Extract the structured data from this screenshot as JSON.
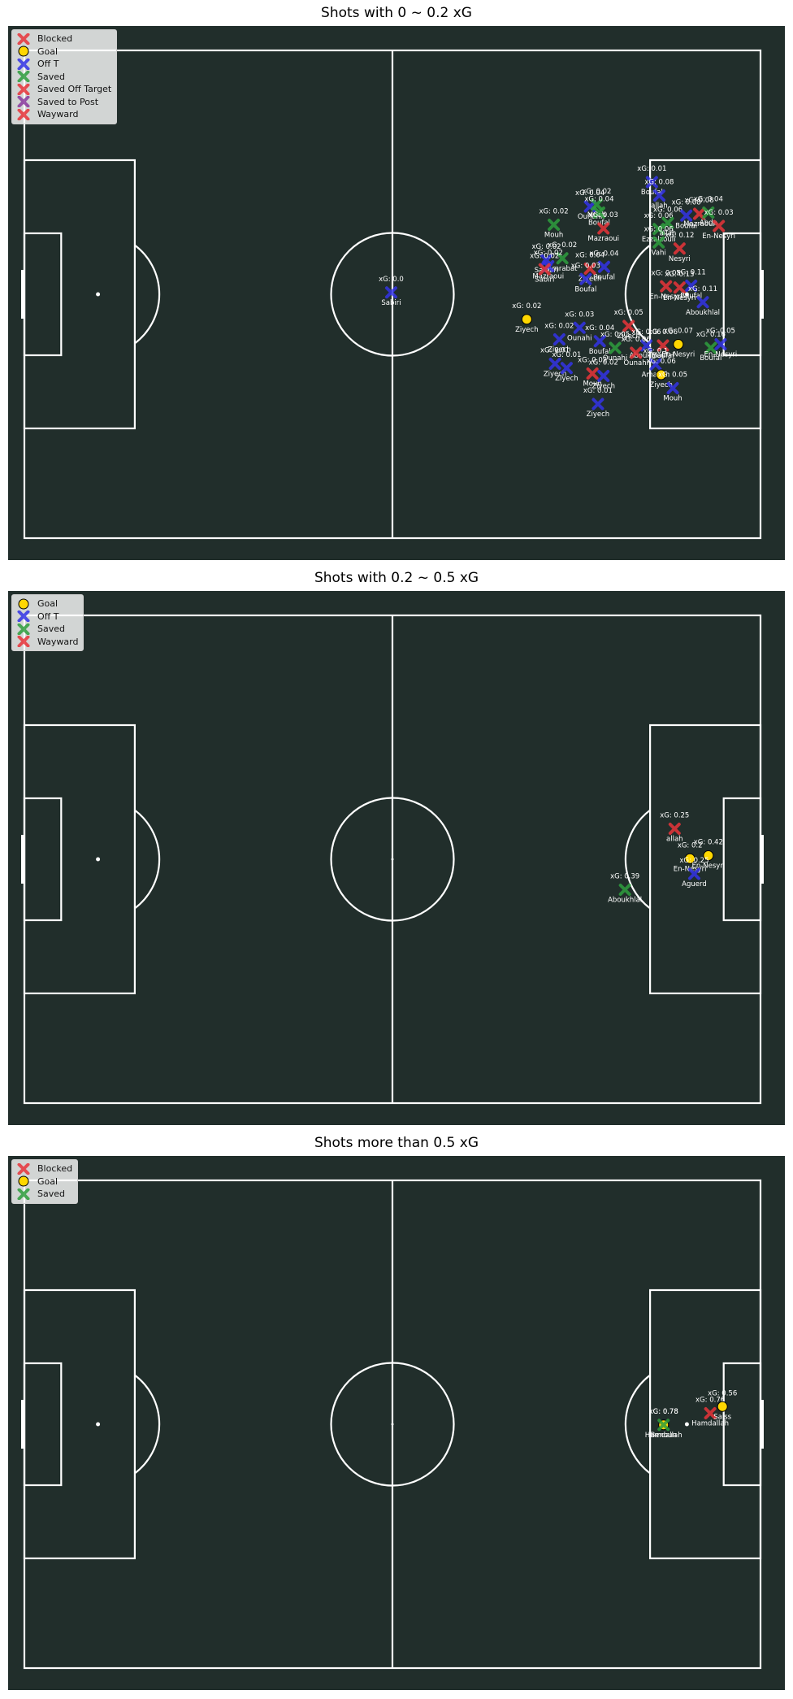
{
  "chart_data": [
    {
      "type": "scatter",
      "title": "Shots with 0 ~ 0.2 xG",
      "legend_position": "top-left",
      "legend": [
        "Blocked",
        "Goal",
        "Off T",
        "Saved",
        "Saved Off Target",
        "Saved to Post",
        "Wayward"
      ],
      "pitch": {
        "length": 120,
        "width": 80
      },
      "points": [
        {
          "x": 59.8,
          "y": 39.7,
          "xg": "0.0",
          "player": "Sabiri",
          "outcome": "Off T"
        },
        {
          "x": 102.3,
          "y": 21.6,
          "xg": "0.01",
          "player": "Boufal",
          "outcome": "Off T"
        },
        {
          "x": 103.5,
          "y": 23.8,
          "xg": "0.08",
          "player": "allah",
          "outcome": "Off T"
        },
        {
          "x": 92.2,
          "y": 25.6,
          "xg": "0.04",
          "player": "Ounahi",
          "outcome": "Off T"
        },
        {
          "x": 93.3,
          "y": 25.3,
          "xg": "0.02",
          "player": "Mouh",
          "outcome": "Saved"
        },
        {
          "x": 93.7,
          "y": 26.6,
          "xg": "0.04",
          "player": "Boufal",
          "outcome": "Saved"
        },
        {
          "x": 86.3,
          "y": 28.6,
          "xg": "0.02",
          "player": "Mouh",
          "outcome": "Saved"
        },
        {
          "x": 94.4,
          "y": 29.2,
          "xg": "0.03",
          "player": "Mazraoui",
          "outcome": "Wayward"
        },
        {
          "x": 103.4,
          "y": 29.3,
          "xg": "0.06",
          "player": "Ezzalzouli",
          "outcome": "Saved"
        },
        {
          "x": 104.9,
          "y": 28.3,
          "xg": "0.06",
          "player": "allah",
          "outcome": "Saved"
        },
        {
          "x": 107.9,
          "y": 27.1,
          "xg": "0.08",
          "player": "Boufal",
          "outcome": "Off T"
        },
        {
          "x": 110.0,
          "y": 26.8,
          "xg": "0.08",
          "player": "Mazraoui",
          "outcome": "Blocked"
        },
        {
          "x": 111.5,
          "y": 26.6,
          "xg": "0.04",
          "player": "Abde",
          "outcome": "Saved"
        },
        {
          "x": 113.2,
          "y": 28.8,
          "xg": "0.03",
          "player": "En-Nesyri",
          "outcome": "Wayward"
        },
        {
          "x": 103.4,
          "y": 31.5,
          "xg": "0.06",
          "player": "Vahi",
          "outcome": "Saved"
        },
        {
          "x": 106.8,
          "y": 32.5,
          "xg": "0.12",
          "player": "Nesyri",
          "outcome": "Wayward"
        },
        {
          "x": 85.1,
          "y": 34.4,
          "xg": "0.02",
          "player": "Saibari",
          "outcome": "Off T"
        },
        {
          "x": 87.7,
          "y": 34.1,
          "xg": "0.02",
          "player": "Amrabat",
          "outcome": "Saved"
        },
        {
          "x": 85.4,
          "y": 35.4,
          "xg": "0.02",
          "player": "Mazraoui",
          "outcome": "Off T"
        },
        {
          "x": 84.8,
          "y": 35.9,
          "xg": "0.02",
          "player": "Sabiri",
          "outcome": "Blocked"
        },
        {
          "x": 94.5,
          "y": 35.5,
          "xg": "0.04",
          "player": "Boufal",
          "outcome": "Off T"
        },
        {
          "x": 92.2,
          "y": 35.8,
          "xg": "0.04",
          "player": "Ziyech",
          "outcome": "Wayward"
        },
        {
          "x": 91.5,
          "y": 37.5,
          "xg": "0.03",
          "player": "Boufal",
          "outcome": "Off T"
        },
        {
          "x": 104.6,
          "y": 38.7,
          "xg": "0.05",
          "player": "En-Nesyri",
          "outcome": "Blocked"
        },
        {
          "x": 106.8,
          "y": 38.9,
          "xg": "0.13",
          "player": "En-Nesyri",
          "outcome": "Wayward"
        },
        {
          "x": 108.7,
          "y": 38.6,
          "xg": "0.11",
          "player": "Boufal",
          "outcome": "Off T"
        },
        {
          "x": 110.6,
          "y": 41.3,
          "xg": "0.11",
          "player": "Aboukhlal",
          "outcome": "Off T"
        },
        {
          "x": 81.9,
          "y": 44.1,
          "xg": "0.02",
          "player": "Ziyech",
          "outcome": "Goal"
        },
        {
          "x": 98.5,
          "y": 45.2,
          "xg": "0.05",
          "player": "Ziyech",
          "outcome": "Wayward"
        },
        {
          "x": 90.5,
          "y": 45.5,
          "xg": "0.03",
          "player": "Ounahi",
          "outcome": "Off T"
        },
        {
          "x": 87.2,
          "y": 47.4,
          "xg": "0.02",
          "player": "Ziyech",
          "outcome": "Off T"
        },
        {
          "x": 93.8,
          "y": 47.7,
          "xg": "0.04",
          "player": "Boufal",
          "outcome": "Off T"
        },
        {
          "x": 96.3,
          "y": 48.8,
          "xg": "0.05",
          "player": "Ounahi",
          "outcome": "Saved"
        },
        {
          "x": 101.4,
          "y": 48.4,
          "xg": "0.06",
          "player": "Aboukhlal",
          "outcome": "Off T"
        },
        {
          "x": 104.1,
          "y": 48.4,
          "xg": "0.06",
          "player": "Boufal",
          "outcome": "Wayward"
        },
        {
          "x": 106.6,
          "y": 48.2,
          "xg": "0.07",
          "player": "En-Nesyri",
          "outcome": "Goal"
        },
        {
          "x": 111.9,
          "y": 48.8,
          "xg": "0.16",
          "player": "Boufal",
          "outcome": "Saved"
        },
        {
          "x": 113.5,
          "y": 48.2,
          "xg": "0.05",
          "player": "En-Nesyri",
          "outcome": "Off T"
        },
        {
          "x": 99.7,
          "y": 49.6,
          "xg": "0.06",
          "player": "Ounahi",
          "outcome": "Wayward"
        },
        {
          "x": 102.9,
          "y": 51.5,
          "xg": "0.1",
          "player": "Amallah",
          "outcome": "Off T"
        },
        {
          "x": 86.5,
          "y": 51.4,
          "xg": "0.01",
          "player": "Ziyech",
          "outcome": "Off T"
        },
        {
          "x": 88.4,
          "y": 52.1,
          "xg": "0.01",
          "player": "Ziyech",
          "outcome": "Off T"
        },
        {
          "x": 92.6,
          "y": 53.0,
          "xg": "0.02",
          "player": "Mouh",
          "outcome": "Wayward"
        },
        {
          "x": 94.4,
          "y": 53.4,
          "xg": "0.02",
          "player": "Ziyech",
          "outcome": "Off T"
        },
        {
          "x": 103.8,
          "y": 53.2,
          "xg": "0.06",
          "player": "Ziyech",
          "outcome": "Goal"
        },
        {
          "x": 105.7,
          "y": 55.4,
          "xg": "0.05",
          "player": "Mouh",
          "outcome": "Off T"
        },
        {
          "x": 93.5,
          "y": 58.0,
          "xg": "0.01",
          "player": "Ziyech",
          "outcome": "Off T"
        }
      ]
    },
    {
      "type": "scatter",
      "title": "Shots with 0.2 ~ 0.5 xG",
      "legend_position": "top-left",
      "legend": [
        "Goal",
        "Off T",
        "Saved",
        "Wayward"
      ],
      "pitch": {
        "length": 120,
        "width": 80
      },
      "points": [
        {
          "x": 106.0,
          "y": 35.0,
          "xg": "0.25",
          "player": "allah",
          "outcome": "Wayward"
        },
        {
          "x": 108.5,
          "y": 39.9,
          "xg": "0.2",
          "player": "En-Nesyri",
          "outcome": "Goal"
        },
        {
          "x": 111.5,
          "y": 39.4,
          "xg": "0.42",
          "player": "En-Nesyri",
          "outcome": "Goal"
        },
        {
          "x": 109.2,
          "y": 42.4,
          "xg": "0.25",
          "player": "Aguerd",
          "outcome": "Off T"
        },
        {
          "x": 97.9,
          "y": 45.0,
          "xg": "0.39",
          "player": "Aboukhlal",
          "outcome": "Saved"
        }
      ]
    },
    {
      "type": "scatter",
      "title": "Shots more than 0.5 xG",
      "legend_position": "top-left",
      "legend": [
        "Blocked",
        "Goal",
        "Saved"
      ],
      "pitch": {
        "length": 120,
        "width": 80
      },
      "points": [
        {
          "x": 104.2,
          "y": 40.1,
          "xg": "0.78",
          "player": "Benoun",
          "outcome": "Goal"
        },
        {
          "x": 104.2,
          "y": 40.1,
          "xg": "0.78",
          "player": "Hamdallah",
          "outcome": "Saved"
        },
        {
          "x": 111.8,
          "y": 38.2,
          "xg": "0.76",
          "player": "Hamdallah",
          "outcome": "Blocked"
        },
        {
          "x": 113.8,
          "y": 37.1,
          "xg": "0.56",
          "player": "Saiss",
          "outcome": "Goal"
        }
      ]
    }
  ],
  "styles": {
    "Blocked": {
      "marker": "x",
      "color": "#e8343a"
    },
    "Goal": {
      "marker": "circle",
      "color": "#ffd700"
    },
    "Off T": {
      "marker": "x",
      "color": "#3333e6"
    },
    "Saved": {
      "marker": "x",
      "color": "#2e9e3e"
    },
    "Saved Off Target": {
      "marker": "x",
      "color": "#e8343a"
    },
    "Saved to Post": {
      "marker": "x",
      "color": "#8a3a9e"
    },
    "Wayward": {
      "marker": "x",
      "color": "#e8343a"
    }
  },
  "colors": {
    "pitch": "#212e2b",
    "line": "#ffffff",
    "label": "#ffffff"
  },
  "xg_prefix": "xG: "
}
